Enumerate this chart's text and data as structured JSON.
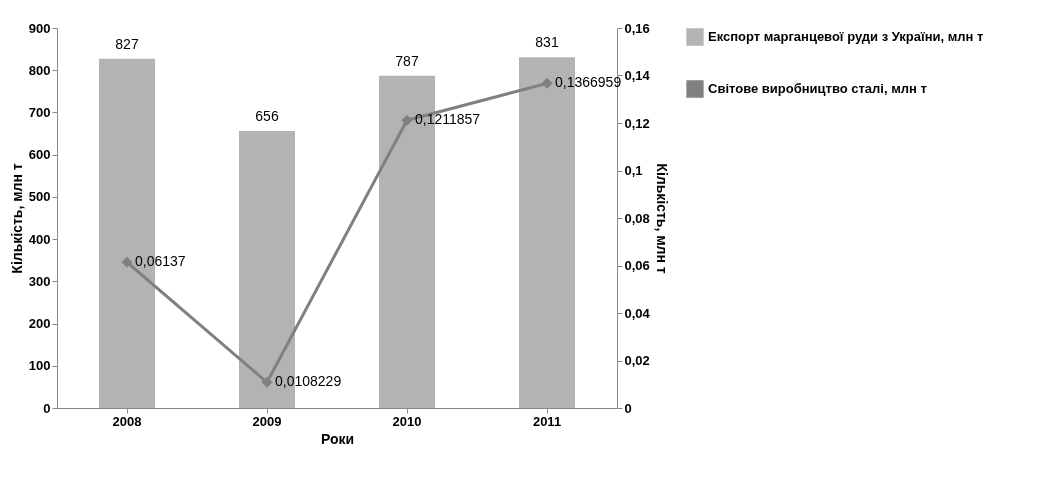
{
  "chart_data": {
    "type": "bar",
    "xlabel": "Роки",
    "ylabel": "Кількість, млн т",
    "y2label": "Кількість, млн т",
    "categories": [
      "2008",
      "2009",
      "2010",
      "2011"
    ],
    "series": [
      {
        "name": "Експорт марганцевої руди з України, млн т",
        "color": "#b3b3b3",
        "values": [
          827,
          656,
          787,
          831
        ],
        "value_labels": [
          "827",
          "656",
          "787",
          "831"
        ]
      },
      {
        "name": "Світове виробництво сталі, млн т",
        "type": "line",
        "axis": "y2",
        "color": "#808080",
        "values": [
          0.06137,
          0.0108229,
          0.1211857,
          0.1366959
        ],
        "value_labels": [
          "0,06137",
          "0,0108229",
          "0,1211857",
          "0,1366959"
        ]
      }
    ],
    "ylim": [
      0,
      900
    ],
    "yticks": [
      0,
      100,
      200,
      300,
      400,
      500,
      600,
      700,
      800,
      900
    ],
    "y2lim": [
      0,
      0.16
    ],
    "y2ticks": [
      0,
      {
        "value": 0.02,
        "label": "0,02"
      },
      {
        "value": 0.04,
        "label": "0,04"
      },
      {
        "value": 0.06,
        "label": "0,06"
      },
      {
        "value": 0.08,
        "label": "0,08"
      },
      {
        "value": 0.1,
        "label": "0,1"
      },
      {
        "value": 0.12,
        "label": "0,12"
      },
      {
        "value": 0.14,
        "label": "0,14"
      },
      {
        "value": 0.16,
        "label": "0,16"
      }
    ],
    "marker": "diamond",
    "line_style": "solid",
    "legend": "right",
    "grid": false
  }
}
